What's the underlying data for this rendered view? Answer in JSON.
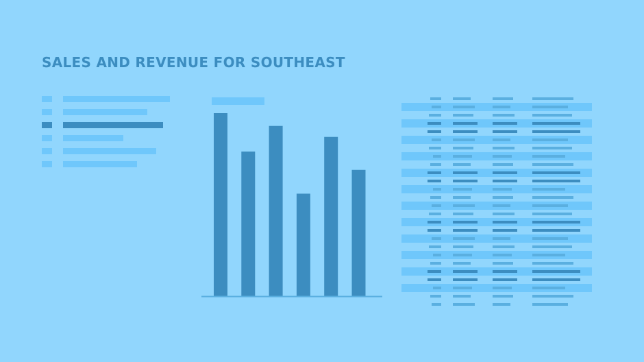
{
  "title": "SALES AND REVENUE FOR SOUTHEAST",
  "colors": {
    "background": "#91D6FD",
    "accent": "#3C8DC0",
    "muted": "#6FC7FB"
  },
  "legend": {
    "items": [
      {
        "value": 0.62,
        "active": false
      },
      {
        "value": 0.49,
        "active": false
      },
      {
        "value": 0.58,
        "active": true
      },
      {
        "value": 0.35,
        "active": false
      },
      {
        "value": 0.54,
        "active": false
      },
      {
        "value": 0.43,
        "active": false
      }
    ]
  },
  "chart_data": {
    "type": "bar",
    "values": [
      100,
      79,
      93,
      56,
      87,
      69
    ],
    "ylim": [
      0,
      100
    ],
    "grid": false,
    "title": "",
    "xlabel": "",
    "ylabel": ""
  },
  "table": {
    "rows": 26,
    "banded_rows": [
      1,
      3,
      5,
      7,
      9,
      11,
      13,
      15,
      17,
      19,
      21,
      23
    ],
    "emphasized_rows": [
      3,
      4,
      9,
      10,
      15,
      16,
      21,
      22
    ]
  }
}
